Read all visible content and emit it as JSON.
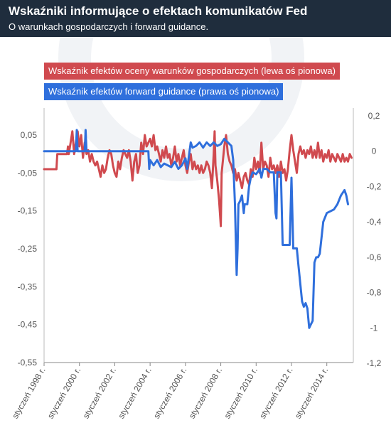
{
  "header": {
    "title": "Wskaźniki informujące o efektach komunikatów Fed",
    "subtitle": "O warunkach gospodarczych i forward guidance."
  },
  "chart_data": {
    "type": "line",
    "grid": false,
    "legend_placement": "top-left",
    "x_tick_labels": [
      "styczeń 1998 r.",
      "styczeń 2000 r.",
      "styczeń 2002 r.",
      "styczeń 2004 r.",
      "styczeń 2006 r.",
      "styczeń 2008 r.",
      "styczeń 2010 r.",
      "styczeń 2012 r.",
      "styczeń 2014 r."
    ],
    "x_tick_years": [
      1998,
      2000,
      2002,
      2004,
      2006,
      2008,
      2010,
      2012,
      2014
    ],
    "x_range": [
      1998,
      2015.5
    ],
    "left_axis": {
      "range": [
        -0.55,
        0.1
      ],
      "ticks": [
        0.05,
        -0.05,
        -0.15,
        -0.25,
        -0.35,
        -0.45,
        -0.55
      ],
      "tick_labels": [
        "0,05",
        "-0,05",
        "-0,15",
        "-0,25",
        "-0,35",
        "-0,45",
        "-0,55"
      ]
    },
    "right_axis": {
      "range": [
        -1.2,
        0.2
      ],
      "ticks": [
        0.2,
        0,
        -0.2,
        -0.4,
        -0.6,
        -0.8,
        -1,
        -1.2
      ],
      "tick_labels": [
        "0,2",
        "0",
        "-0,2",
        "-0,4",
        "-0,6",
        "-0,8",
        "-1",
        "-1,2"
      ]
    },
    "series": [
      {
        "name": "Wskaźnik efektów oceny warunków gospodarczych (lewa oś pionowa)",
        "axis": "left",
        "color": "#d04a4f",
        "points": [
          [
            1998.0,
            -0.04
          ],
          [
            1998.7,
            -0.04
          ],
          [
            1998.75,
            0
          ],
          [
            1999.3,
            0
          ],
          [
            1999.35,
            0.02
          ],
          [
            1999.4,
            0
          ],
          [
            1999.6,
            0.06
          ],
          [
            1999.7,
            0
          ],
          [
            1999.8,
            0.03
          ],
          [
            1999.9,
            0.06
          ],
          [
            2000.0,
            0.02
          ],
          [
            2000.1,
            0.05
          ],
          [
            2000.2,
            -0.01
          ],
          [
            2000.3,
            0.03
          ],
          [
            2000.4,
            0
          ],
          [
            2000.5,
            0.01
          ],
          [
            2000.6,
            -0.02
          ],
          [
            2000.7,
            0
          ],
          [
            2000.8,
            -0.02
          ],
          [
            2000.9,
            -0.03
          ],
          [
            2001.0,
            -0.02
          ],
          [
            2001.1,
            -0.04
          ],
          [
            2001.2,
            -0.06
          ],
          [
            2001.3,
            -0.03
          ],
          [
            2001.4,
            -0.05
          ],
          [
            2001.5,
            -0.04
          ],
          [
            2001.6,
            -0.01
          ],
          [
            2001.7,
            0.01
          ],
          [
            2001.8,
            0
          ],
          [
            2001.9,
            -0.03
          ],
          [
            2002.0,
            -0.05
          ],
          [
            2002.1,
            -0.06
          ],
          [
            2002.2,
            -0.02
          ],
          [
            2002.3,
            -0.04
          ],
          [
            2002.4,
            -0.01
          ],
          [
            2002.5,
            0.01
          ],
          [
            2002.6,
            0
          ],
          [
            2002.7,
            -0.01
          ],
          [
            2002.8,
            0.01
          ],
          [
            2002.9,
            -0.02
          ],
          [
            2003.0,
            -0.07
          ],
          [
            2003.1,
            -0.02
          ],
          [
            2003.2,
            0
          ],
          [
            2003.3,
            -0.05
          ],
          [
            2003.4,
            -0.03
          ],
          [
            2003.5,
            0.03
          ],
          [
            2003.6,
            0
          ],
          [
            2003.7,
            0.05
          ],
          [
            2003.8,
            0.02
          ],
          [
            2003.9,
            0.03
          ],
          [
            2004.0,
            0.04
          ],
          [
            2004.1,
            0.02
          ],
          [
            2004.2,
            0.05
          ],
          [
            2004.3,
            0.01
          ],
          [
            2004.4,
            0.02
          ],
          [
            2004.5,
            0
          ],
          [
            2004.6,
            -0.02
          ],
          [
            2004.7,
            0.01
          ],
          [
            2004.8,
            -0.01
          ],
          [
            2004.9,
            0.02
          ],
          [
            2005.0,
            -0.01
          ],
          [
            2005.1,
            0
          ],
          [
            2005.2,
            -0.03
          ],
          [
            2005.3,
            -0.01
          ],
          [
            2005.4,
            0.02
          ],
          [
            2005.5,
            -0.02
          ],
          [
            2005.6,
            0
          ],
          [
            2005.7,
            -0.03
          ],
          [
            2005.8,
            -0.01
          ],
          [
            2005.9,
            0.01
          ],
          [
            2006.0,
            -0.03
          ],
          [
            2006.1,
            -0.05
          ],
          [
            2006.2,
            -0.02
          ],
          [
            2006.3,
            0
          ],
          [
            2006.4,
            -0.04
          ],
          [
            2006.5,
            -0.02
          ],
          [
            2006.6,
            -0.04
          ],
          [
            2006.7,
            -0.03
          ],
          [
            2006.8,
            -0.05
          ],
          [
            2006.9,
            -0.03
          ],
          [
            2007.0,
            -0.05
          ],
          [
            2007.1,
            -0.04
          ],
          [
            2007.2,
            -0.02
          ],
          [
            2007.3,
            -0.03
          ],
          [
            2007.4,
            -0.05
          ],
          [
            2007.5,
            -0.09
          ],
          [
            2007.6,
            0
          ],
          [
            2007.65,
            0.06
          ],
          [
            2007.7,
            -0.03
          ],
          [
            2007.8,
            -0.07
          ],
          [
            2007.9,
            -0.12
          ],
          [
            2008.0,
            -0.19
          ],
          [
            2008.05,
            -0.05
          ],
          [
            2008.2,
            0.02
          ],
          [
            2008.3,
            0.05
          ],
          [
            2008.4,
            0
          ],
          [
            2008.5,
            -0.02
          ],
          [
            2008.6,
            -0.03
          ],
          [
            2008.7,
            -0.05
          ],
          [
            2008.8,
            -0.04
          ],
          [
            2008.9,
            -0.07
          ],
          [
            2009.0,
            -0.05
          ],
          [
            2009.1,
            -0.07
          ],
          [
            2009.2,
            -0.09
          ],
          [
            2009.3,
            -0.06
          ],
          [
            2009.4,
            -0.05
          ],
          [
            2009.5,
            -0.07
          ],
          [
            2009.6,
            -0.08
          ],
          [
            2009.7,
            -0.04
          ],
          [
            2009.8,
            -0.06
          ],
          [
            2009.9,
            -0.01
          ],
          [
            2010.0,
            -0.04
          ],
          [
            2010.1,
            -0.02
          ],
          [
            2010.2,
            -0.05
          ],
          [
            2010.3,
            0.03
          ],
          [
            2010.4,
            -0.04
          ],
          [
            2010.5,
            -0.02
          ],
          [
            2010.6,
            -0.03
          ],
          [
            2010.7,
            -0.06
          ],
          [
            2010.8,
            -0.01
          ],
          [
            2010.9,
            -0.04
          ],
          [
            2011.0,
            -0.03
          ],
          [
            2011.1,
            -0.05
          ],
          [
            2011.2,
            -0.03
          ],
          [
            2011.3,
            -0.06
          ],
          [
            2011.4,
            -0.02
          ],
          [
            2011.5,
            -0.05
          ],
          [
            2011.6,
            -0.04
          ],
          [
            2011.7,
            -0.07
          ],
          [
            2011.8,
            -0.04
          ],
          [
            2011.9,
            0.01
          ],
          [
            2012.0,
            0.05
          ],
          [
            2012.1,
            0.01
          ],
          [
            2012.2,
            -0.02
          ],
          [
            2012.3,
            -0.05
          ],
          [
            2012.4,
            0
          ],
          [
            2012.5,
            0.02
          ],
          [
            2012.6,
            0
          ],
          [
            2012.7,
            0.01
          ],
          [
            2012.8,
            -0.01
          ],
          [
            2012.9,
            0.01
          ],
          [
            2013.0,
            0
          ],
          [
            2013.1,
            0.02
          ],
          [
            2013.2,
            -0.01
          ],
          [
            2013.3,
            0.01
          ],
          [
            2013.4,
            -0.01
          ],
          [
            2013.5,
            0.03
          ],
          [
            2013.6,
            -0.01
          ],
          [
            2013.7,
            0.01
          ],
          [
            2013.8,
            -0.02
          ],
          [
            2013.9,
            0
          ],
          [
            2014.0,
            -0.01
          ],
          [
            2014.1,
            0.01
          ],
          [
            2014.2,
            -0.02
          ],
          [
            2014.3,
            0
          ],
          [
            2014.4,
            -0.01
          ],
          [
            2014.5,
            -0.02
          ],
          [
            2014.6,
            0
          ],
          [
            2014.7,
            -0.01
          ],
          [
            2014.8,
            -0.02
          ],
          [
            2014.9,
            0
          ],
          [
            2015.0,
            -0.02
          ],
          [
            2015.1,
            -0.01
          ],
          [
            2015.2,
            -0.02
          ],
          [
            2015.3,
            0
          ],
          [
            2015.4,
            -0.01
          ]
        ]
      },
      {
        "name": "Wskaźnik efektów forward guidance (prawa oś pionowa)",
        "axis": "right",
        "color": "#2f6fdc",
        "points": [
          [
            1998.0,
            0
          ],
          [
            1999.8,
            0
          ],
          [
            1999.85,
            0.12
          ],
          [
            1999.9,
            0
          ],
          [
            2000.3,
            0
          ],
          [
            2000.35,
            0.12
          ],
          [
            2000.4,
            0
          ],
          [
            2003.9,
            0
          ],
          [
            2003.95,
            -0.1
          ],
          [
            2004.0,
            -0.05
          ],
          [
            2004.2,
            -0.08
          ],
          [
            2004.4,
            -0.05
          ],
          [
            2004.6,
            -0.09
          ],
          [
            2004.8,
            -0.07
          ],
          [
            2005.0,
            -0.08
          ],
          [
            2005.2,
            -0.09
          ],
          [
            2005.4,
            -0.06
          ],
          [
            2005.6,
            -0.1
          ],
          [
            2005.8,
            -0.08
          ],
          [
            2006.0,
            -0.04
          ],
          [
            2006.1,
            -0.1
          ],
          [
            2006.3,
            0.05
          ],
          [
            2006.4,
            0.02
          ],
          [
            2006.6,
            0.03
          ],
          [
            2006.8,
            0.05
          ],
          [
            2007.0,
            0.02
          ],
          [
            2007.2,
            0.05
          ],
          [
            2007.4,
            0.03
          ],
          [
            2007.6,
            0.05
          ],
          [
            2007.8,
            0.03
          ],
          [
            2008.0,
            0.04
          ],
          [
            2008.2,
            0.07
          ],
          [
            2008.4,
            0.05
          ],
          [
            2008.6,
            0.03
          ],
          [
            2008.7,
            -0.05
          ],
          [
            2008.8,
            -0.3
          ],
          [
            2008.9,
            -0.7
          ],
          [
            2008.95,
            -0.55
          ],
          [
            2009.0,
            -0.3
          ],
          [
            2009.1,
            -0.28
          ],
          [
            2009.2,
            -0.25
          ],
          [
            2009.3,
            -0.35
          ],
          [
            2009.35,
            -0.3
          ],
          [
            2009.5,
            -0.3
          ],
          [
            2009.6,
            -0.2
          ],
          [
            2009.7,
            -0.15
          ],
          [
            2009.8,
            -0.12
          ],
          [
            2010.0,
            -0.13
          ],
          [
            2010.2,
            -0.1
          ],
          [
            2010.3,
            -0.15
          ],
          [
            2010.4,
            -0.1
          ],
          [
            2010.6,
            -0.1
          ],
          [
            2010.8,
            -0.12
          ],
          [
            2011.0,
            -0.12
          ],
          [
            2011.1,
            -0.35
          ],
          [
            2011.15,
            -0.38
          ],
          [
            2011.2,
            -0.12
          ],
          [
            2011.4,
            -0.12
          ],
          [
            2011.5,
            -0.53
          ],
          [
            2011.9,
            -0.53
          ],
          [
            2012.0,
            -0.15
          ],
          [
            2012.1,
            -0.55
          ],
          [
            2012.3,
            -0.55
          ],
          [
            2012.4,
            -0.65
          ],
          [
            2012.5,
            -0.75
          ],
          [
            2012.6,
            -0.85
          ],
          [
            2012.7,
            -0.88
          ],
          [
            2012.8,
            -0.86
          ],
          [
            2012.9,
            -0.89
          ],
          [
            2013.0,
            -1.0
          ],
          [
            2013.1,
            -0.98
          ],
          [
            2013.2,
            -0.96
          ],
          [
            2013.3,
            -0.63
          ],
          [
            2013.4,
            -0.6
          ],
          [
            2013.5,
            -0.6
          ],
          [
            2013.6,
            -0.58
          ],
          [
            2013.8,
            -0.4
          ],
          [
            2014.0,
            -0.35
          ],
          [
            2014.2,
            -0.34
          ],
          [
            2014.4,
            -0.33
          ],
          [
            2014.6,
            -0.3
          ],
          [
            2014.8,
            -0.25
          ],
          [
            2015.0,
            -0.22
          ],
          [
            2015.1,
            -0.25
          ],
          [
            2015.2,
            -0.3
          ]
        ]
      }
    ]
  }
}
